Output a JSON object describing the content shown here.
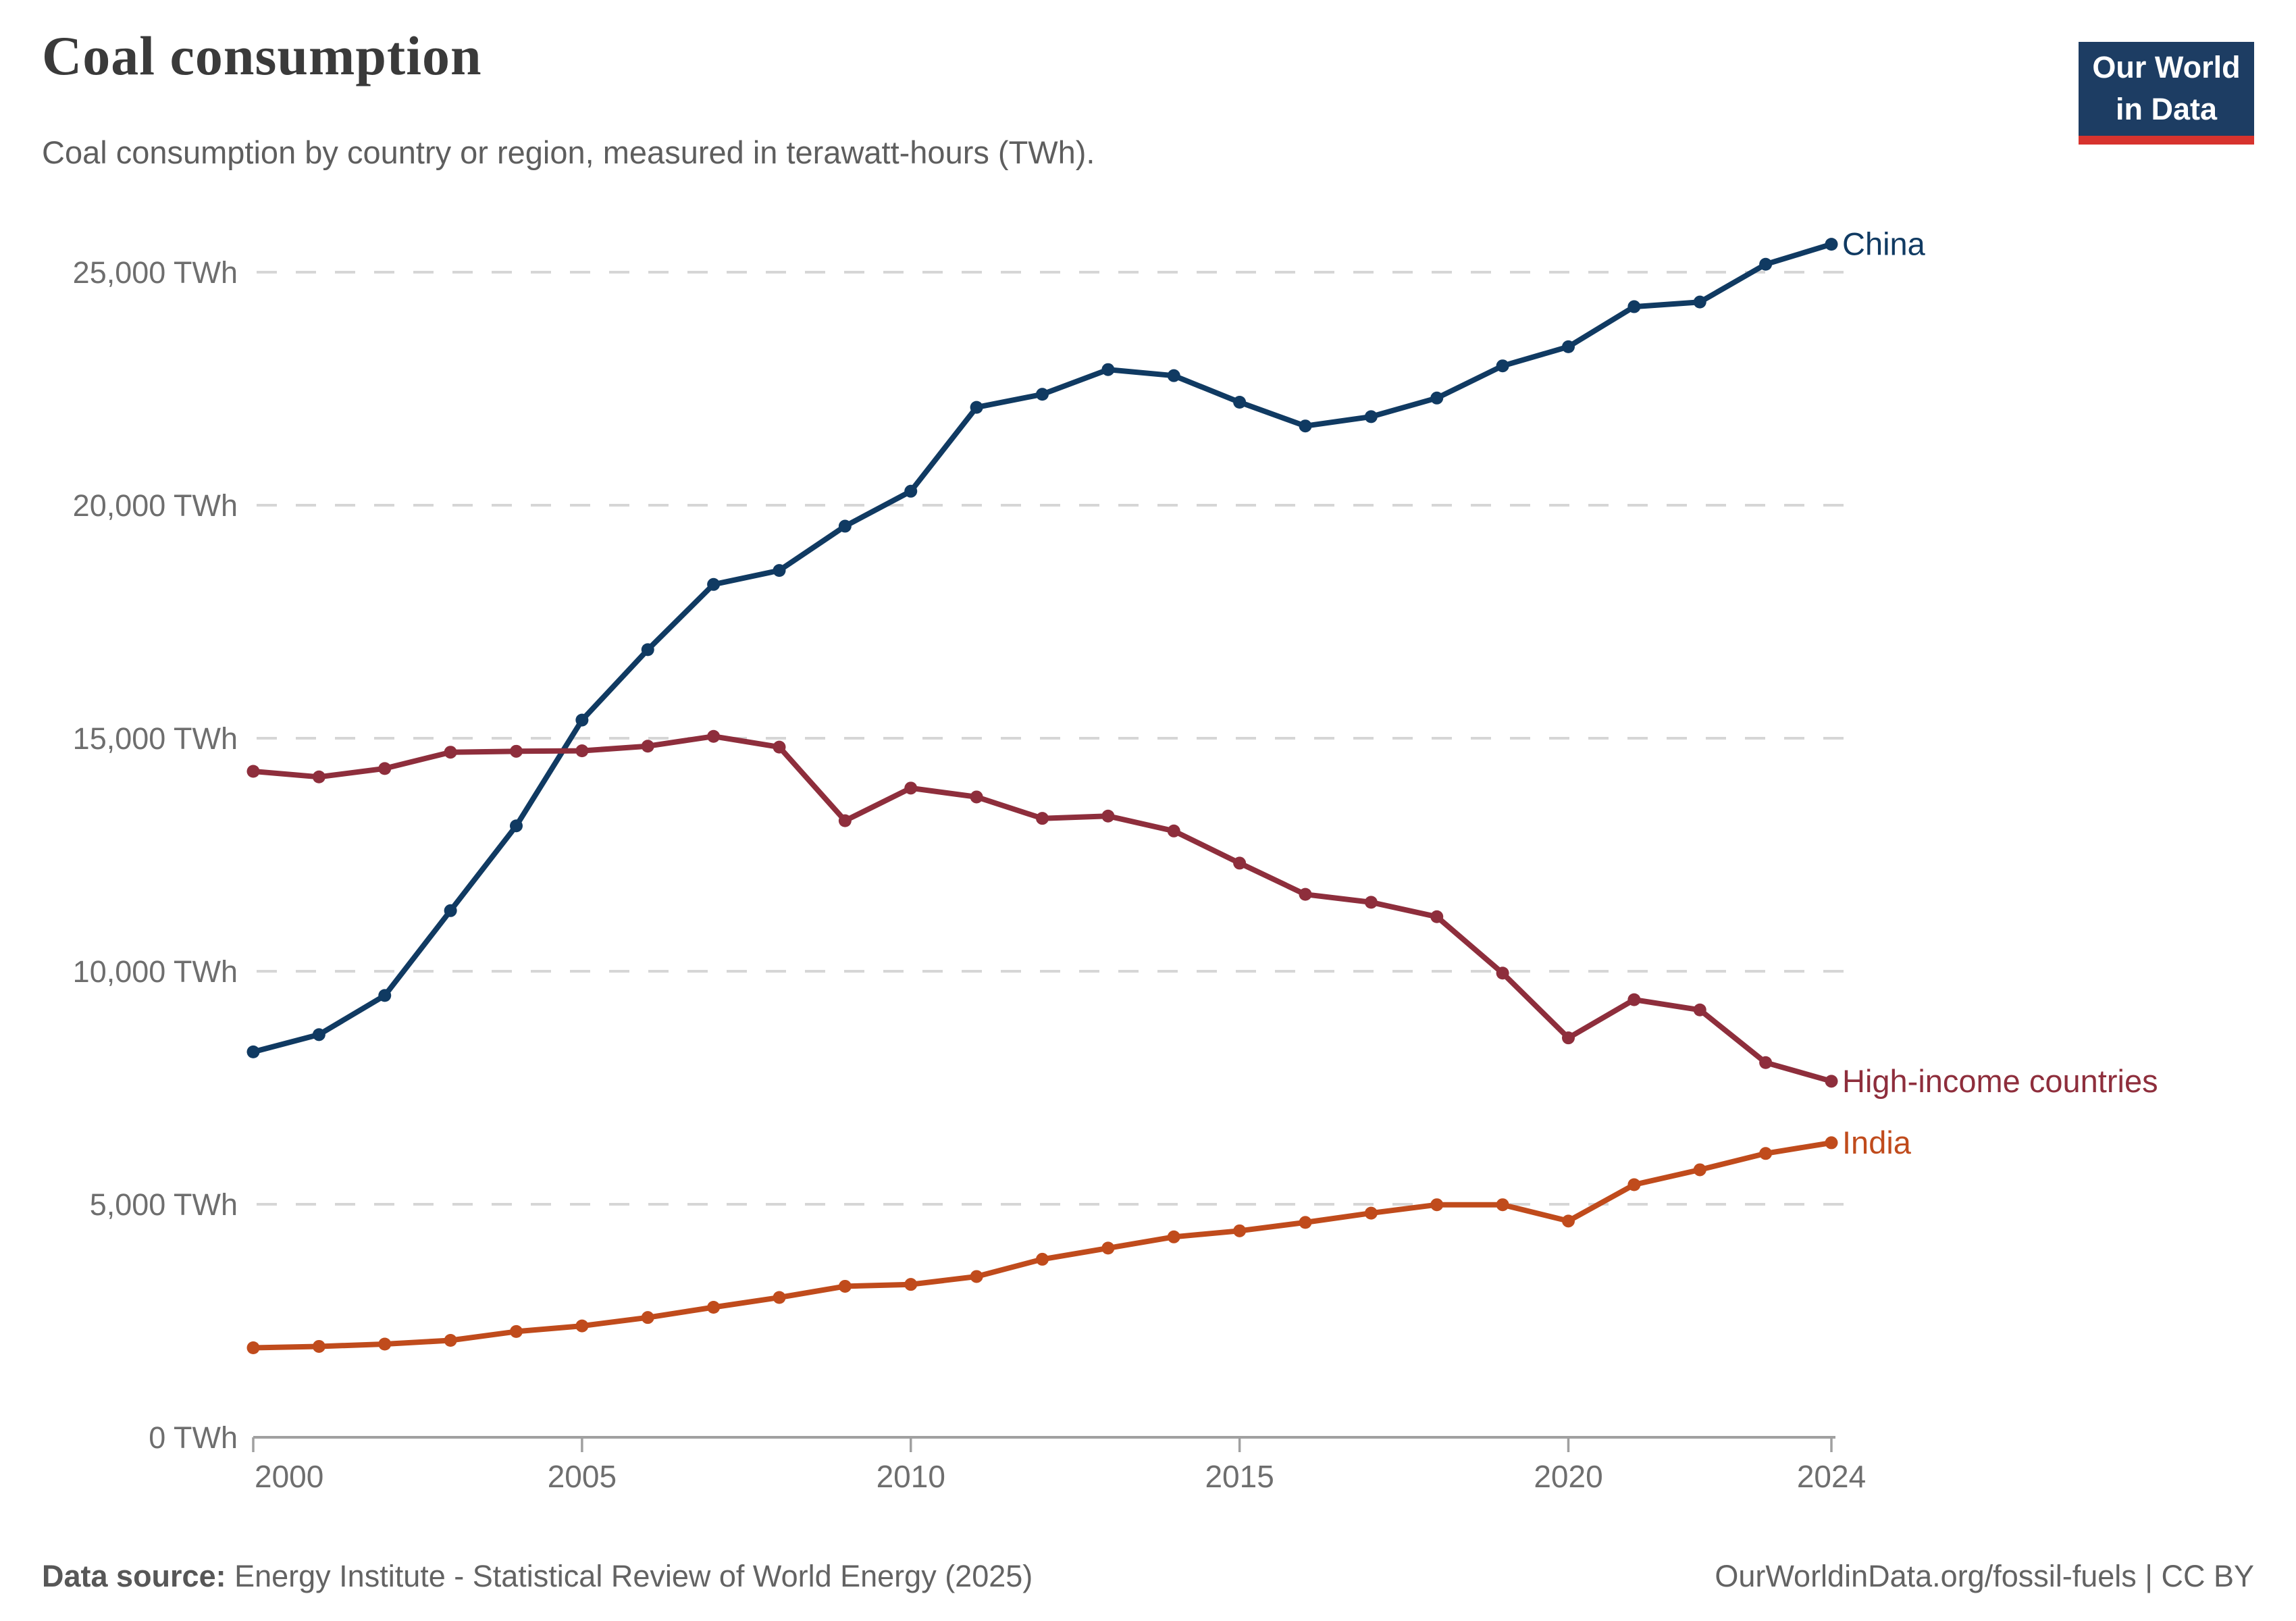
{
  "header": {
    "title": "Coal consumption",
    "subtitle": "Coal consumption by country or region, measured in terawatt-hours (TWh)."
  },
  "logo": {
    "line1": "Our World",
    "line2": "in Data",
    "background_color": "#1d3d63",
    "bar_color": "#d7332e"
  },
  "footer": {
    "source_label": "Data source:",
    "source_text": " Energy Institute - Statistical Review of World Energy (2025)",
    "credit": "OurWorldinData.org/fossil-fuels | CC BY"
  },
  "chart_data": {
    "type": "line",
    "title": "Coal consumption",
    "xlabel": "",
    "ylabel": "TWh",
    "x": [
      2000,
      2001,
      2002,
      2003,
      2004,
      2005,
      2006,
      2007,
      2008,
      2009,
      2010,
      2011,
      2012,
      2013,
      2014,
      2015,
      2016,
      2017,
      2018,
      2019,
      2020,
      2021,
      2022,
      2023,
      2024
    ],
    "series": [
      {
        "name": "China",
        "color": "#103a62",
        "values": [
          8270,
          8640,
          9480,
          11300,
          13120,
          15390,
          16900,
          18300,
          18600,
          19550,
          20300,
          22100,
          22380,
          22910,
          22780,
          22210,
          21700,
          21900,
          22300,
          22990,
          23400,
          24260,
          24360,
          25170,
          25600
        ]
      },
      {
        "name": "High-income countries",
        "color": "#8e2e3c",
        "values": [
          14290,
          14170,
          14350,
          14700,
          14720,
          14730,
          14830,
          15040,
          14810,
          13230,
          13930,
          13740,
          13280,
          13330,
          13010,
          12320,
          11650,
          11480,
          11170,
          9960,
          8570,
          9390,
          9170,
          8040,
          7640
        ]
      },
      {
        "name": "India",
        "color": "#c04b1c",
        "values": [
          1920,
          1950,
          2000,
          2080,
          2270,
          2390,
          2570,
          2790,
          3000,
          3240,
          3280,
          3450,
          3820,
          4060,
          4300,
          4430,
          4610,
          4810,
          4990,
          4990,
          4640,
          5420,
          5740,
          6090,
          6320
        ]
      }
    ],
    "ylim": [
      0,
      26000
    ],
    "y_ticks": [
      0,
      5000,
      10000,
      15000,
      20000,
      25000
    ],
    "y_tick_labels": [
      "0 TWh",
      "5,000 TWh",
      "10,000 TWh",
      "15,000 TWh",
      "20,000 TWh",
      "25,000 TWh"
    ],
    "x_ticks": [
      2000,
      2005,
      2010,
      2015,
      2020,
      2024
    ],
    "x_tick_labels": [
      "2000",
      "2005",
      "2010",
      "2015",
      "2020",
      "2024"
    ],
    "grid": true,
    "legend_position": "end-of-line"
  },
  "style_colors": {
    "gridline": "#d6d6d6",
    "axis": "#a0a0a0",
    "tick_text": "#6e6e6e"
  }
}
